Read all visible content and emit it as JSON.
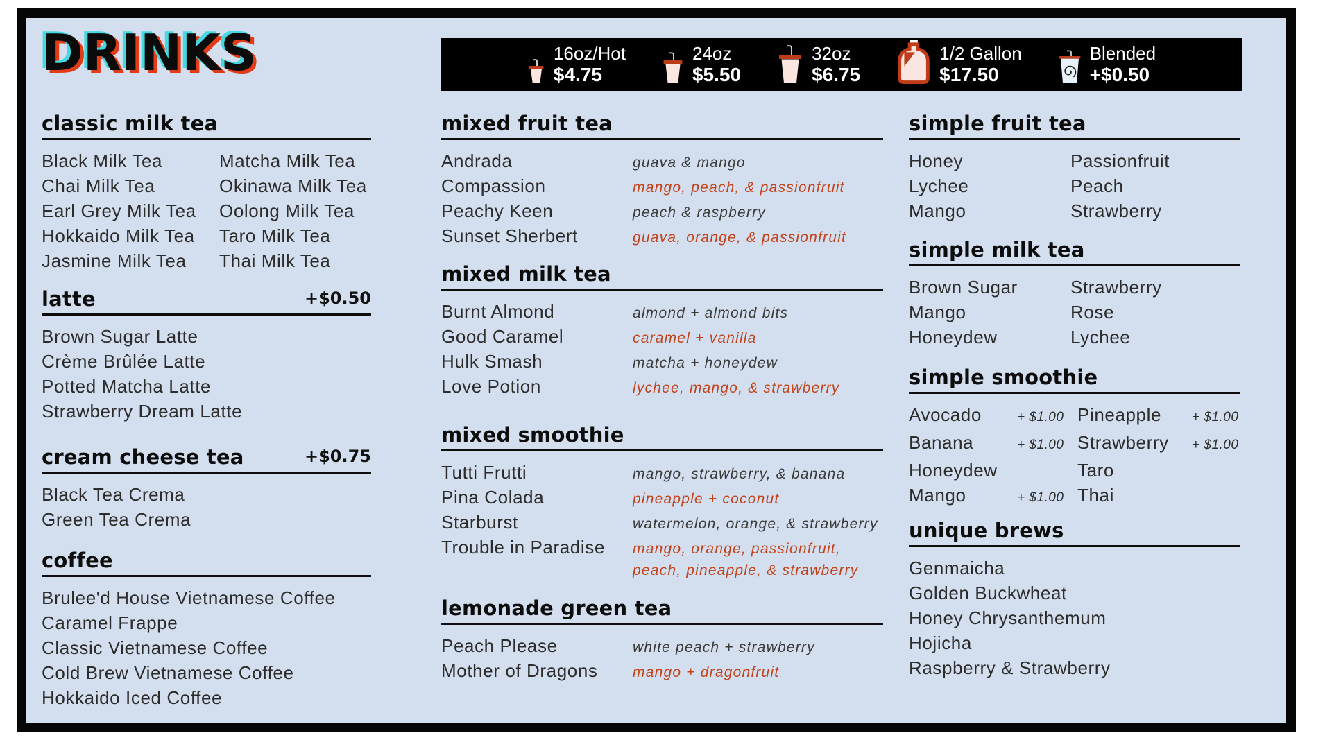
{
  "title": "DRINKS",
  "colors": {
    "background": "#d3dfee",
    "panel_border": "#060606",
    "bar_background": "#000000",
    "accent_red": "#c2431b",
    "text_dark": "#2c2c2c",
    "desc_dark": "#3a3a3a",
    "glitch_cyan": "#45d8e0",
    "glitch_red": "#e23b17",
    "cup_body_pink": "#fbe5e1",
    "cup_lid_red": "#bc3b18",
    "jug_red": "#c03c18",
    "blended_body": "#e9f1fa"
  },
  "size_bar": {
    "options": [
      {
        "icon": "cup-small-icon",
        "label": "16oz/Hot",
        "price": "$4.75"
      },
      {
        "icon": "cup-medium-icon",
        "label": "24oz",
        "price": "$5.50"
      },
      {
        "icon": "cup-large-icon",
        "label": "32oz",
        "price": "$6.75"
      },
      {
        "icon": "half-gallon-jug-icon",
        "label": "1/2 Gallon",
        "price": "$17.50"
      },
      {
        "icon": "blended-cup-icon",
        "label": "Blended",
        "price": "+$0.50"
      }
    ]
  },
  "columns": [
    {
      "sections": [
        {
          "id": "classic-milk-tea",
          "heading": "classic milk tea",
          "layout": "two-col",
          "rows": [
            [
              "Black Milk Tea",
              "Matcha Milk Tea"
            ],
            [
              "Chai Milk Tea",
              "Okinawa Milk Tea"
            ],
            [
              "Earl Grey Milk Tea",
              "Oolong Milk Tea"
            ],
            [
              "Hokkaido Milk Tea",
              "Taro Milk Tea"
            ],
            [
              "Jasmine Milk Tea",
              "Thai Milk Tea"
            ]
          ]
        },
        {
          "id": "latte",
          "heading": "latte",
          "surcharge": "+$0.50",
          "layout": "list",
          "items": [
            "Brown Sugar Latte",
            "Crème Brûlée Latte",
            "Potted Matcha Latte",
            "Strawberry Dream Latte"
          ]
        },
        {
          "id": "cream-cheese-tea",
          "heading": "cream cheese tea",
          "surcharge": "+$0.75",
          "layout": "list",
          "items": [
            "Black Tea Crema",
            "Green Tea Crema"
          ]
        },
        {
          "id": "coffee",
          "heading": "coffee",
          "layout": "list",
          "items": [
            "Brulee'd House Vietnamese Coffee",
            "Caramel Frappe",
            "Classic Vietnamese Coffee",
            "Cold Brew Vietnamese Coffee",
            "Hokkaido Iced Coffee"
          ]
        }
      ]
    },
    {
      "sections": [
        {
          "id": "mixed-fruit-tea",
          "heading": "mixed fruit tea",
          "layout": "desc",
          "items": [
            {
              "name": "Andrada",
              "desc": "guava & mango",
              "desc_style": "dark"
            },
            {
              "name": "Compassion",
              "desc": "mango, peach, & passionfruit",
              "desc_style": "accent"
            },
            {
              "name": "Peachy Keen",
              "desc": "peach & raspberry",
              "desc_style": "dark"
            },
            {
              "name": "Sunset Sherbert",
              "desc": "guava, orange, & passionfruit",
              "desc_style": "accent"
            }
          ]
        },
        {
          "id": "mixed-milk-tea",
          "heading": "mixed milk tea",
          "layout": "desc",
          "items": [
            {
              "name": "Burnt Almond",
              "desc": "almond + almond bits",
              "desc_style": "dark"
            },
            {
              "name": "Good Caramel",
              "desc": "caramel + vanilla",
              "desc_style": "accent"
            },
            {
              "name": "Hulk Smash",
              "desc": "matcha + honeydew",
              "desc_style": "dark"
            },
            {
              "name": "Love Potion",
              "desc": "lychee, mango, & strawberry",
              "desc_style": "accent"
            }
          ]
        },
        {
          "id": "mixed-smoothie",
          "heading": "mixed smoothie",
          "layout": "desc",
          "items": [
            {
              "name": "Tutti Frutti",
              "desc": "mango, strawberry, & banana",
              "desc_style": "dark"
            },
            {
              "name": "Pina Colada",
              "desc": "pineapple + coconut",
              "desc_style": "accent"
            },
            {
              "name": "Starburst",
              "desc": "watermelon, orange, & strawberry",
              "desc_style": "dark"
            },
            {
              "name": "Trouble in Paradise",
              "desc": "mango, orange, passionfruit, peach, pineapple, & strawberry",
              "desc_style": "accent"
            }
          ]
        },
        {
          "id": "lemonade-green-tea",
          "heading": "lemonade green tea",
          "layout": "desc",
          "items": [
            {
              "name": "Peach Please",
              "desc": "white peach + strawberry",
              "desc_style": "dark"
            },
            {
              "name": "Mother of Dragons",
              "desc": "mango + dragonfruit",
              "desc_style": "accent"
            }
          ]
        }
      ]
    },
    {
      "sections": [
        {
          "id": "simple-fruit-tea",
          "heading": "simple fruit tea",
          "layout": "two-col",
          "rows": [
            [
              "Honey",
              "Passionfruit"
            ],
            [
              "Lychee",
              "Peach"
            ],
            [
              "Mango",
              "Strawberry"
            ]
          ]
        },
        {
          "id": "simple-milk-tea",
          "heading": "simple milk tea",
          "layout": "two-col",
          "rows": [
            [
              "Brown Sugar",
              "Strawberry"
            ],
            [
              "Mango",
              "Rose"
            ],
            [
              "Honeydew",
              "Lychee"
            ]
          ]
        },
        {
          "id": "simple-smoothie",
          "heading": "simple smoothie",
          "layout": "price-two-col",
          "rows": [
            [
              {
                "name": "Avocado",
                "price": "+ $1.00"
              },
              {
                "name": "Pineapple",
                "price": "+ $1.00"
              }
            ],
            [
              {
                "name": "Banana",
                "price": "+ $1.00"
              },
              {
                "name": "Strawberry",
                "price": "+ $1.00"
              }
            ],
            [
              {
                "name": "Honeydew",
                "price": ""
              },
              {
                "name": "Taro",
                "price": ""
              }
            ],
            [
              {
                "name": "Mango",
                "price": "+ $1.00"
              },
              {
                "name": "Thai",
                "price": ""
              }
            ]
          ]
        },
        {
          "id": "unique-brews",
          "heading": "unique brews",
          "layout": "list",
          "items": [
            "Genmaicha",
            "Golden Buckwheat",
            "Honey Chrysanthemum",
            "Hojicha",
            "Raspberry & Strawberry"
          ]
        }
      ]
    }
  ]
}
